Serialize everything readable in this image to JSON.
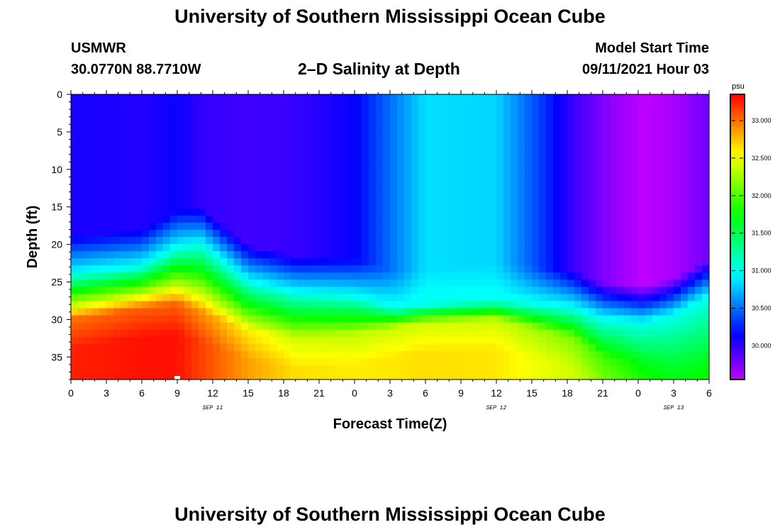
{
  "header": {
    "title_top": "University of Southern Mississippi Ocean Cube",
    "title_bottom": "University of Southern Mississippi Ocean Cube",
    "station_name": "USMWR",
    "station_coords": "30.0770N  88.7710W",
    "model_start_label": "Model Start Time",
    "model_start_value": "09/11/2021 Hour 03"
  },
  "chart_data": {
    "type": "heatmap",
    "title": "2–D Salinity at Depth",
    "xlabel": "Forecast Time(Z)",
    "ylabel": "Depth (ft)",
    "x_tick_labels": [
      "0",
      "3",
      "6",
      "9",
      "12",
      "15",
      "18",
      "21",
      "0",
      "3",
      "6",
      "9",
      "12",
      "15",
      "18",
      "21",
      "0",
      "3",
      "6"
    ],
    "x_range_hours": [
      0,
      54
    ],
    "date_labels": [
      {
        "text": "SEP 11",
        "hour": 12
      },
      {
        "text": "SEP 12",
        "hour": 36
      },
      {
        "text": "SEP 13",
        "hour": 51
      }
    ],
    "y_ticks": [
      0,
      5,
      10,
      15,
      20,
      25,
      30,
      35
    ],
    "ylim_ft": [
      0,
      38
    ],
    "colorbar": {
      "unit": "psu",
      "min": 29.55,
      "max": 33.35,
      "tick_values": [
        30.0,
        30.5,
        31.0,
        31.5,
        32.0,
        32.5,
        33.0
      ],
      "tick_labels": [
        "30.000",
        "30.500",
        "31.000",
        "31.500",
        "32.000",
        "32.500",
        "33.000"
      ]
    },
    "profile_times_hours": [
      0,
      6,
      9,
      11,
      15,
      19,
      24,
      27.5,
      30,
      36,
      42.5,
      45,
      48.5,
      51,
      54
    ],
    "surface_psu": [
      30.08,
      30.05,
      30.12,
      30.0,
      29.95,
      29.98,
      30.13,
      30.55,
      30.85,
      30.82,
      29.98,
      29.75,
      29.55,
      29.62,
      29.8
    ],
    "halocline_depth_ft": [
      22.5,
      21.5,
      19.0,
      18.5,
      23.5,
      25.0,
      25.5,
      27.0,
      26.5,
      26.0,
      27.0,
      28.5,
      29.0,
      28.0,
      25.5
    ],
    "bottom_psu": [
      33.25,
      33.3,
      33.3,
      33.15,
      32.85,
      32.65,
      32.6,
      32.62,
      32.65,
      32.62,
      32.4,
      32.2,
      31.95,
      31.8,
      31.85
    ],
    "bottom_layer_top_ft": [
      30.0,
      28.5,
      28.0,
      29.0,
      31.5,
      32.5,
      32.0,
      31.0,
      30.5,
      30.0,
      32.5,
      35.0,
      36.0,
      35.5,
      34.5
    ],
    "marker": {
      "hour": 9,
      "depth_ft": 38
    }
  }
}
